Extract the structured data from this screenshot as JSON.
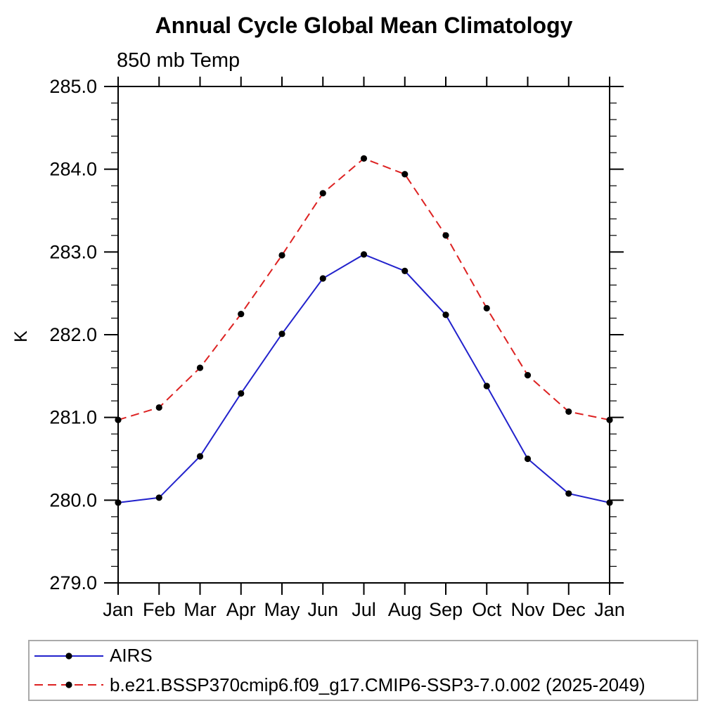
{
  "page": {
    "background": "#ffffff"
  },
  "chart_data": {
    "type": "line",
    "title": "Annual Cycle Global Mean Climatology",
    "subtitle": "850 mb Temp",
    "ylabel": "K",
    "xlabel": "",
    "x_categories": [
      "Jan",
      "Feb",
      "Mar",
      "Apr",
      "May",
      "Jun",
      "Jul",
      "Aug",
      "Sep",
      "Oct",
      "Nov",
      "Dec",
      "Jan"
    ],
    "ylim": [
      279.0,
      285.0
    ],
    "ytick_major": 1.0,
    "ytick_minor": 0.2,
    "ytick_labels": [
      "279.0",
      "280.0",
      "281.0",
      "282.0",
      "283.0",
      "284.0",
      "285.0"
    ],
    "grid": false,
    "axis_color": "#000000",
    "legend": {
      "position": "bottom-left",
      "border_color": "#aaaaaa"
    },
    "series": [
      {
        "name": "AIRS",
        "color": "#2222cc",
        "line_style": "solid",
        "marker": "filled-circle",
        "marker_color": "#000000",
        "values": [
          279.97,
          280.03,
          280.53,
          281.29,
          282.01,
          282.68,
          282.97,
          282.77,
          282.24,
          281.38,
          280.5,
          280.08,
          279.97
        ]
      },
      {
        "name": "b.e21.BSSP370cmip6.f09_g17.CMIP6-SSP3-7.0.002 (2025-2049)",
        "color": "#dd2222",
        "line_style": "dashed",
        "marker": "filled-circle",
        "marker_color": "#000000",
        "values": [
          280.97,
          281.12,
          281.6,
          282.25,
          282.96,
          283.71,
          284.13,
          283.94,
          283.2,
          282.32,
          281.51,
          281.07,
          280.97
        ]
      }
    ]
  }
}
